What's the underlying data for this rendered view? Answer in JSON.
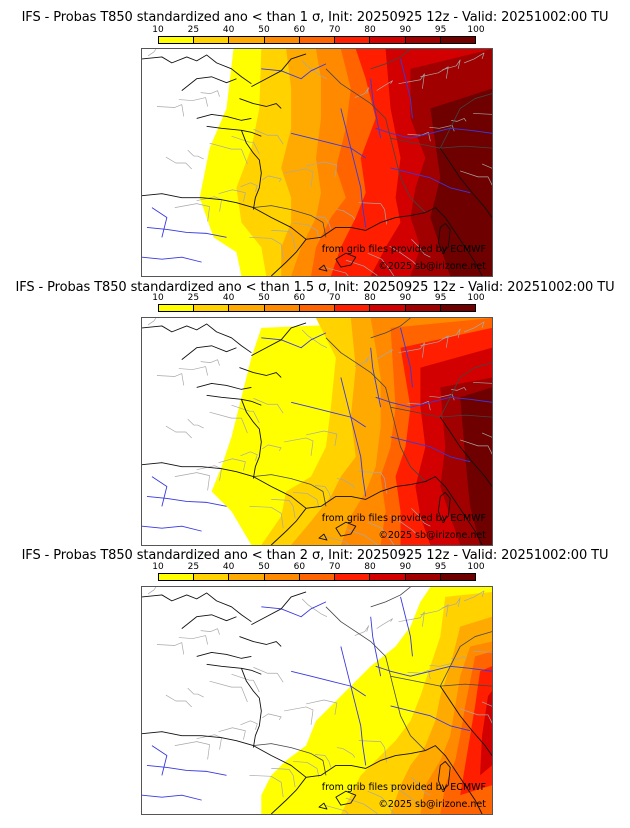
{
  "panels": [
    {
      "title": "IFS - Probas T850  standardized ano < than 1 σ, Init: 20250925 12z - Valid: 20251002:00 TU",
      "threshold_sigma": 1,
      "credit_source": "from grib files provided by ECMWF",
      "credit_copyright": "©2025 sb@irizone.net"
    },
    {
      "title": "IFS - Probas T850  standardized ano < than 1.5 σ, Init: 20250925 12z - Valid: 20251002:00 TU",
      "threshold_sigma": 1.5,
      "credit_source": "from grib files provided by ECMWF",
      "credit_copyright": "©2025 sb@irizone.net"
    },
    {
      "title": "IFS - Probas T850  standardized ano < than 2 σ, Init: 20250925 12z - Valid: 20251002:00 TU",
      "threshold_sigma": 2,
      "credit_source": "from grib files provided by ECMWF",
      "credit_copyright": "©2025 sb@irizone.net"
    }
  ],
  "colorbar": {
    "ticks": [
      "10",
      "25",
      "40",
      "50",
      "60",
      "70",
      "80",
      "90",
      "95",
      "100"
    ],
    "colors": [
      "#ffff00",
      "#ffd200",
      "#ffaa00",
      "#ff8a00",
      "#ff6400",
      "#ff1e00",
      "#d20000",
      "#a00000",
      "#6e0000"
    ]
  }
}
